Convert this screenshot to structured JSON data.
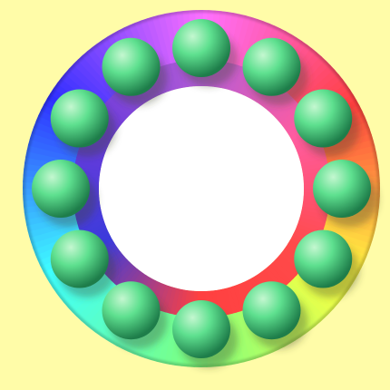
{
  "scene": {
    "background_color": "#fffca8",
    "ring": {
      "outer_hue_stops": [
        "#ff70ff",
        "#ff3f3f",
        "#ffff40",
        "#7dff7d",
        "#3fffff",
        "#2f2fff",
        "#ff70ff"
      ],
      "rim_color": "#c8c8b0"
    },
    "inner_ring": {
      "hue_stops": [
        "#b45cd6",
        "#ff5ca0",
        "#ff4a4a",
        "#ff4040",
        "#3b3bdb",
        "#6b3bdb",
        "#b45cd6"
      ]
    },
    "bead_count": 12,
    "bead_colors": {
      "highlight": "#c4f7d0",
      "mid": "#5ee08f",
      "dark": "#1e7d4a",
      "shadow": "rgba(60,70,40,0.35)"
    }
  }
}
